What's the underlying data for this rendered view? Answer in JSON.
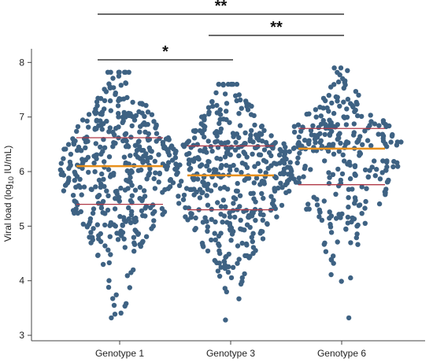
{
  "chart_data": {
    "type": "scatter",
    "title": "",
    "ylabel": {
      "prefix": "Viral load (log",
      "subscript": "10",
      "suffix": " IU/mL)"
    },
    "ylim": [
      2.9,
      8.25
    ],
    "yticks": [
      "3",
      "4",
      "5",
      "6",
      "7",
      "8"
    ],
    "categories": [
      "Genotype 1",
      "Genotype 3",
      "Genotype 6"
    ],
    "point_color": "#3e6283",
    "median_color": "#e8901c",
    "iqr_color": "#b03a48",
    "series": [
      {
        "category": "Genotype 1",
        "median": 6.1,
        "q1": 5.4,
        "q3": 6.62,
        "min": 3.32,
        "max": 7.82,
        "n": 430
      },
      {
        "category": "Genotype 3",
        "median": 5.93,
        "q1": 5.3,
        "q3": 6.47,
        "min": 3.28,
        "max": 7.6,
        "n": 430
      },
      {
        "category": "Genotype 6",
        "median": 6.42,
        "q1": 5.76,
        "q3": 6.79,
        "min": 3.32,
        "max": 7.9,
        "n": 290
      }
    ],
    "comparisons": [
      {
        "from": "Genotype 1",
        "to": "Genotype 6",
        "label": "**"
      },
      {
        "from": "Genotype 3",
        "to": "Genotype 6",
        "label": "**"
      },
      {
        "from": "Genotype 1",
        "to": "Genotype 3",
        "label": "*"
      }
    ]
  }
}
